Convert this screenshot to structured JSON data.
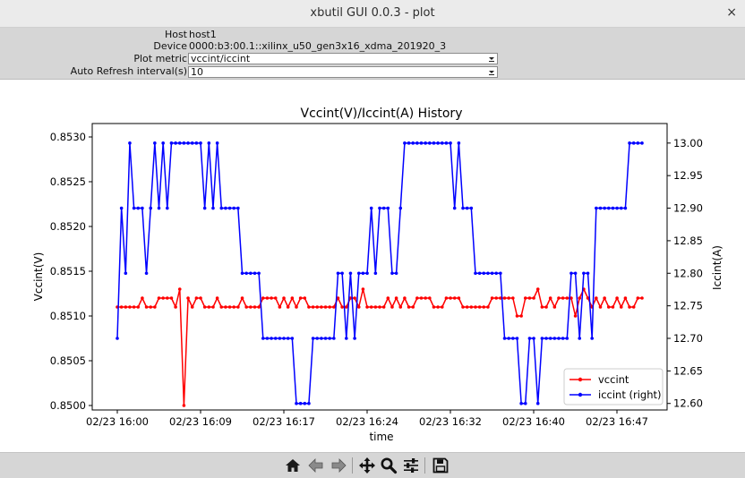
{
  "window": {
    "title": "xbutil GUI 0.0.3 - plot",
    "close_glyph": "×"
  },
  "info": {
    "host_label": "Host",
    "host_value": "host1",
    "device_label": "Device",
    "device_value": "0000:b3:00.1::xilinx_u50_gen3x16_xdma_201920_3",
    "metric_label": "Plot metric",
    "metric_value": "vccint/iccint",
    "refresh_label": "Auto Refresh interval(s)",
    "refresh_value": "10"
  },
  "chart_data": {
    "type": "line",
    "title": "Vccint(V)/Iccint(A) History",
    "xlabel": "time",
    "ylabel_left": "Vccint(V)",
    "ylabel_right": "Iccint(A)",
    "x_tick_labels": [
      "02/23 16:00",
      "02/23 16:09",
      "02/23 16:17",
      "02/23 16:24",
      "02/23 16:32",
      "02/23 16:40",
      "02/23 16:47"
    ],
    "y_left_ticks": [
      "0.8500",
      "0.8505",
      "0.8510",
      "0.8515",
      "0.8520",
      "0.8525",
      "0.8530"
    ],
    "y_right_ticks": [
      "12.60",
      "12.65",
      "12.70",
      "12.75",
      "12.80",
      "12.85",
      "12.90",
      "12.95",
      "13.00"
    ],
    "ylim_left": [
      0.84995,
      0.85315
    ],
    "ylim_right": [
      12.59,
      13.03
    ],
    "x_range_points": [
      0,
      126
    ],
    "legend_position": "lower right",
    "grid": false,
    "series": [
      {
        "name": "vccint",
        "axis": "left",
        "color": "#ff0000",
        "values": [
          0.8511,
          0.8511,
          0.8511,
          0.8511,
          0.8511,
          0.8511,
          0.8512,
          0.8511,
          0.8511,
          0.8511,
          0.8512,
          0.8512,
          0.8512,
          0.8512,
          0.8511,
          0.8513,
          0.85,
          0.8512,
          0.8511,
          0.8512,
          0.8512,
          0.8511,
          0.8511,
          0.8511,
          0.8512,
          0.8511,
          0.8511,
          0.8511,
          0.8511,
          0.8511,
          0.8512,
          0.8511,
          0.8511,
          0.8511,
          0.8511,
          0.8512,
          0.8512,
          0.8512,
          0.8512,
          0.8511,
          0.8512,
          0.8511,
          0.8512,
          0.8511,
          0.8512,
          0.8512,
          0.8511,
          0.8511,
          0.8511,
          0.8511,
          0.8511,
          0.8511,
          0.8511,
          0.8512,
          0.8511,
          0.8511,
          0.8512,
          0.8512,
          0.8511,
          0.8513,
          0.8511,
          0.8511,
          0.8511,
          0.8511,
          0.8511,
          0.8512,
          0.8511,
          0.8512,
          0.8511,
          0.8512,
          0.8511,
          0.8511,
          0.8512,
          0.8512,
          0.8512,
          0.8512,
          0.8511,
          0.8511,
          0.8511,
          0.8512,
          0.8512,
          0.8512,
          0.8512,
          0.8511,
          0.8511,
          0.8511,
          0.8511,
          0.8511,
          0.8511,
          0.8511,
          0.8512,
          0.8512,
          0.8512,
          0.8512,
          0.8512,
          0.8512,
          0.851,
          0.851,
          0.8512,
          0.8512,
          0.8512,
          0.8513,
          0.8511,
          0.8511,
          0.8512,
          0.8511,
          0.8512,
          0.8512,
          0.8512,
          0.8512,
          0.851,
          0.8512,
          0.8513,
          0.8512,
          0.8511,
          0.8512,
          0.8511,
          0.8512,
          0.8511,
          0.8511,
          0.8512,
          0.8511,
          0.8512,
          0.8511,
          0.8511,
          0.8512,
          0.8512
        ]
      },
      {
        "name": "iccint (right)",
        "axis": "right",
        "color": "#0000ff",
        "values": [
          12.7,
          12.9,
          12.8,
          13.0,
          12.9,
          12.9,
          12.9,
          12.8,
          12.9,
          13.0,
          12.9,
          13.0,
          12.9,
          13.0,
          13.0,
          13.0,
          13.0,
          13.0,
          13.0,
          13.0,
          13.0,
          12.9,
          13.0,
          12.9,
          13.0,
          12.9,
          12.9,
          12.9,
          12.9,
          12.9,
          12.8,
          12.8,
          12.8,
          12.8,
          12.8,
          12.7,
          12.7,
          12.7,
          12.7,
          12.7,
          12.7,
          12.7,
          12.7,
          12.6,
          12.6,
          12.6,
          12.6,
          12.7,
          12.7,
          12.7,
          12.7,
          12.7,
          12.7,
          12.8,
          12.8,
          12.7,
          12.8,
          12.7,
          12.8,
          12.8,
          12.8,
          12.9,
          12.8,
          12.9,
          12.9,
          12.9,
          12.8,
          12.8,
          12.9,
          13.0,
          13.0,
          13.0,
          13.0,
          13.0,
          13.0,
          13.0,
          13.0,
          13.0,
          13.0,
          13.0,
          13.0,
          12.9,
          13.0,
          12.9,
          12.9,
          12.9,
          12.8,
          12.8,
          12.8,
          12.8,
          12.8,
          12.8,
          12.8,
          12.7,
          12.7,
          12.7,
          12.7,
          12.6,
          12.6,
          12.7,
          12.7,
          12.6,
          12.7,
          12.7,
          12.7,
          12.7,
          12.7,
          12.7,
          12.7,
          12.8,
          12.8,
          12.7,
          12.8,
          12.8,
          12.7,
          12.9,
          12.9,
          12.9,
          12.9,
          12.9,
          12.9,
          12.9,
          12.9,
          13.0,
          13.0,
          13.0,
          13.0
        ]
      }
    ]
  },
  "toolbar": {
    "buttons": [
      "home",
      "back",
      "forward",
      "pan",
      "zoom",
      "configure-subplots",
      "save"
    ]
  }
}
